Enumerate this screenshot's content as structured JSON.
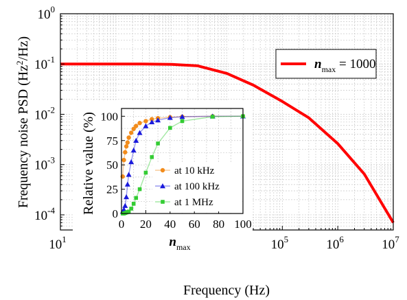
{
  "chart_data": [
    {
      "type": "line",
      "xlabel": "Frequency (Hz)",
      "ylabel": {
        "main": "Frequency noise PSD (Hz",
        "sup": "2",
        "tail": "/Hz)"
      },
      "x_scale": "log",
      "y_scale": "log",
      "xlim": [
        10,
        10000000
      ],
      "ylim": [
        5e-05,
        1
      ],
      "x_ticks": [
        {
          "value": 10,
          "base": "10",
          "exp": "1"
        },
        {
          "value": 100,
          "base": "10",
          "exp": "2"
        },
        {
          "value": 1000,
          "base": "10",
          "exp": "3"
        },
        {
          "value": 10000,
          "base": "10",
          "exp": "4"
        },
        {
          "value": 100000,
          "base": "10",
          "exp": "5"
        },
        {
          "value": 1000000,
          "base": "10",
          "exp": "6"
        },
        {
          "value": 10000000,
          "base": "10",
          "exp": "7"
        }
      ],
      "y_ticks": [
        {
          "value": 0.0001,
          "base": "10",
          "exp": "-4"
        },
        {
          "value": 0.001,
          "base": "10",
          "exp": "-3"
        },
        {
          "value": 0.01,
          "base": "10",
          "exp": "-2"
        },
        {
          "value": 0.1,
          "base": "10",
          "exp": "-1"
        },
        {
          "value": 1,
          "base": "10",
          "exp": "0"
        }
      ],
      "grid": true,
      "legend": {
        "placement": "top-right",
        "var": "n",
        "sub": "max",
        "rest": " = 1000"
      },
      "series": [
        {
          "color": "#ff0000",
          "x": [
            10,
            100,
            300,
            1000,
            3000,
            10000,
            30000,
            100000,
            300000,
            1000000,
            3000000,
            10000000
          ],
          "y": [
            0.1,
            0.1,
            0.0998,
            0.0985,
            0.092,
            0.065,
            0.038,
            0.018,
            0.0085,
            0.0026,
            0.00065,
            7e-05
          ]
        }
      ]
    },
    {
      "type": "line",
      "xlabel": {
        "var": "n",
        "sub": "max"
      },
      "ylabel": "Relative value (%)",
      "xlim": [
        0,
        100
      ],
      "ylim": [
        0,
        108
      ],
      "x_ticks": [
        "0",
        "20",
        "40",
        "60",
        "80",
        "100"
      ],
      "y_ticks": [
        "0",
        "25",
        "50",
        "75",
        "100"
      ],
      "grid": true,
      "legend": {
        "placement": "bottom-right"
      },
      "series": [
        {
          "name": "at 10 kHz",
          "color": "#f28c1c",
          "marker": "circle",
          "x": [
            1,
            2,
            3,
            4,
            5,
            6,
            8,
            10,
            12,
            15,
            20,
            25,
            30,
            40,
            50,
            75,
            100
          ],
          "y": [
            38,
            55,
            63,
            69,
            73,
            78,
            83,
            87,
            90,
            93,
            95,
            97,
            98,
            99,
            99.5,
            100,
            100
          ]
        },
        {
          "name": "at 100 kHz",
          "color": "#1a1adc",
          "marker": "triangle",
          "x": [
            1,
            2,
            3,
            4,
            5,
            6,
            8,
            10,
            12,
            15,
            20,
            25,
            30,
            40,
            50,
            75,
            100
          ],
          "y": [
            2,
            4,
            8,
            17,
            30,
            40,
            53,
            65,
            75,
            83,
            90,
            94,
            96,
            98.5,
            99.5,
            100,
            100
          ]
        },
        {
          "name": "at 1 MHz",
          "color": "#33cc33",
          "marker": "square",
          "x": [
            1,
            2,
            3,
            4,
            5,
            6,
            8,
            10,
            12,
            15,
            20,
            25,
            30,
            40,
            50,
            75,
            100
          ],
          "y": [
            0,
            0,
            0.5,
            1,
            1.5,
            2,
            5,
            10,
            16,
            25,
            42,
            58,
            72,
            88,
            95,
            99.5,
            100
          ]
        }
      ]
    }
  ]
}
